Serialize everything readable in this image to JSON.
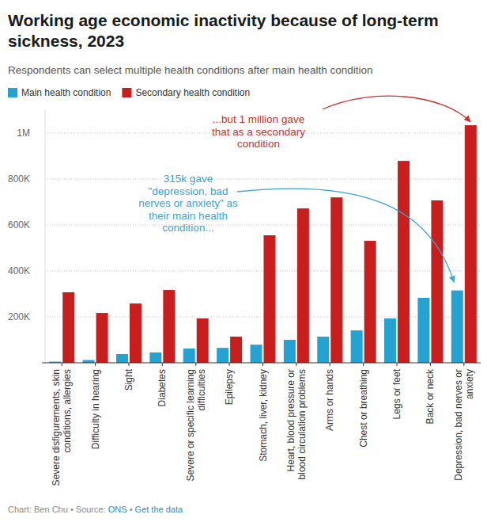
{
  "chart_data": {
    "type": "bar",
    "title": "Working age economic inactivity because of long-term sickness, 2023",
    "subtitle": "Respondents can select multiple health conditions after main health condition",
    "categories": [
      "Severe disfigurements, skin conditions, allergies",
      "Difficulty in hearing",
      "Sight",
      "Diabetes",
      "Severe or specific learning difficulties",
      "Epilepsy",
      "Stomach, liver, kidney",
      "Heart, blood pressure or blood circulation problems",
      "Arms or hands",
      "Chest or breathing",
      "Legs or feet",
      "Back or neck",
      "Depression, bad nerves or anxiety"
    ],
    "series": [
      {
        "name": "Main health condition",
        "color": "#24a3d3",
        "values": [
          5000,
          12000,
          38000,
          45000,
          62000,
          65000,
          79000,
          100000,
          114000,
          141000,
          193000,
          283000,
          315000
        ]
      },
      {
        "name": "Secondary health condition",
        "color": "#c81e1e",
        "values": [
          307000,
          217000,
          258000,
          317000,
          193000,
          114000,
          555000,
          672000,
          720000,
          531000,
          879000,
          707000,
          1034000
        ]
      }
    ],
    "ylim": [
      0,
      1100000
    ],
    "yticks": [
      {
        "value": 200000,
        "label": "200K"
      },
      {
        "value": 400000,
        "label": "400K"
      },
      {
        "value": 600000,
        "label": "600K"
      },
      {
        "value": 800000,
        "label": "800K"
      },
      {
        "value": 1000000,
        "label": "1M"
      }
    ],
    "grid": true,
    "legend": "top-left",
    "annotations": [
      {
        "text": [
          "315k gave",
          "\"depression, bad",
          "nerves or anxiety\" as",
          "their main health",
          "condition..."
        ],
        "color": "#3aa3d0"
      },
      {
        "text": [
          "...but 1 million gave",
          "that as a secondary",
          "condition"
        ],
        "color": "#c8302c"
      }
    ],
    "footer": {
      "credit": "Chart: Ben Chu",
      "separator": "•",
      "source_label": "Source:",
      "source": "ONS",
      "link": "Get the data"
    }
  }
}
